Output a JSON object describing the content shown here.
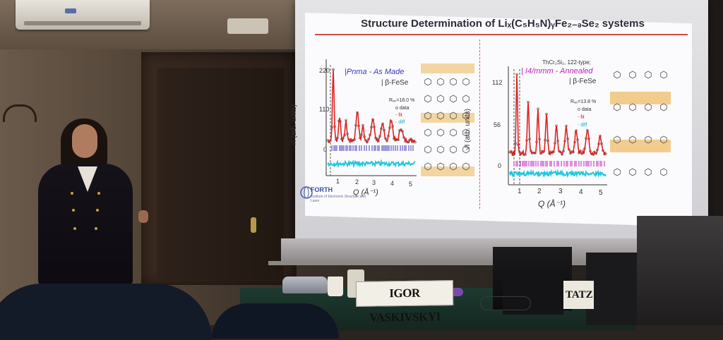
{
  "slide": {
    "title": "Structure Determination of Liₓ(C₅H₅N)ᵧFe₂₋ₔSe₂ systems",
    "logo_text": "FORTH",
    "logo_subtitle": "Institute of Electronic Structure and Laser"
  },
  "left_plot": {
    "legend_title": "|Pnma - As Made",
    "legend_phase": "| β-FeSe",
    "rwp": "Rᵥₚ=18.0 %",
    "legend_items": [
      "o data",
      "- fit",
      "- diff"
    ],
    "ylabel": "√I (arb. units)",
    "xlabel": "Q (Å⁻¹)",
    "yticks": [
      "220",
      "110",
      "0"
    ],
    "xticks": [
      "1",
      "2",
      "3",
      "4",
      "5"
    ]
  },
  "right_plot": {
    "legend_header": "ThCr₂Si₂, 122-type;",
    "legend_title": "| I4/mmm - Annealed",
    "legend_phase": "| β-FeSe",
    "rwp": "Rᵥₚ=13.8 %",
    "legend_items": [
      "o data",
      "- fit",
      "- diff"
    ],
    "ylabel": "√I (arb. units)",
    "xlabel": "Q (Å⁻¹)",
    "yticks": [
      "112",
      "56",
      "0"
    ],
    "xticks": [
      "1",
      "2",
      "3",
      "4",
      "5"
    ]
  },
  "nameplates": {
    "main": "IGOR VASKIVSKYI",
    "partial": "TATZ"
  },
  "colors": {
    "fit": "#e02020",
    "diff": "#20c8e0",
    "ticks_left": "#3a3ab8",
    "ticks_right": "#c020c0",
    "title_rule": "#d84848"
  }
}
